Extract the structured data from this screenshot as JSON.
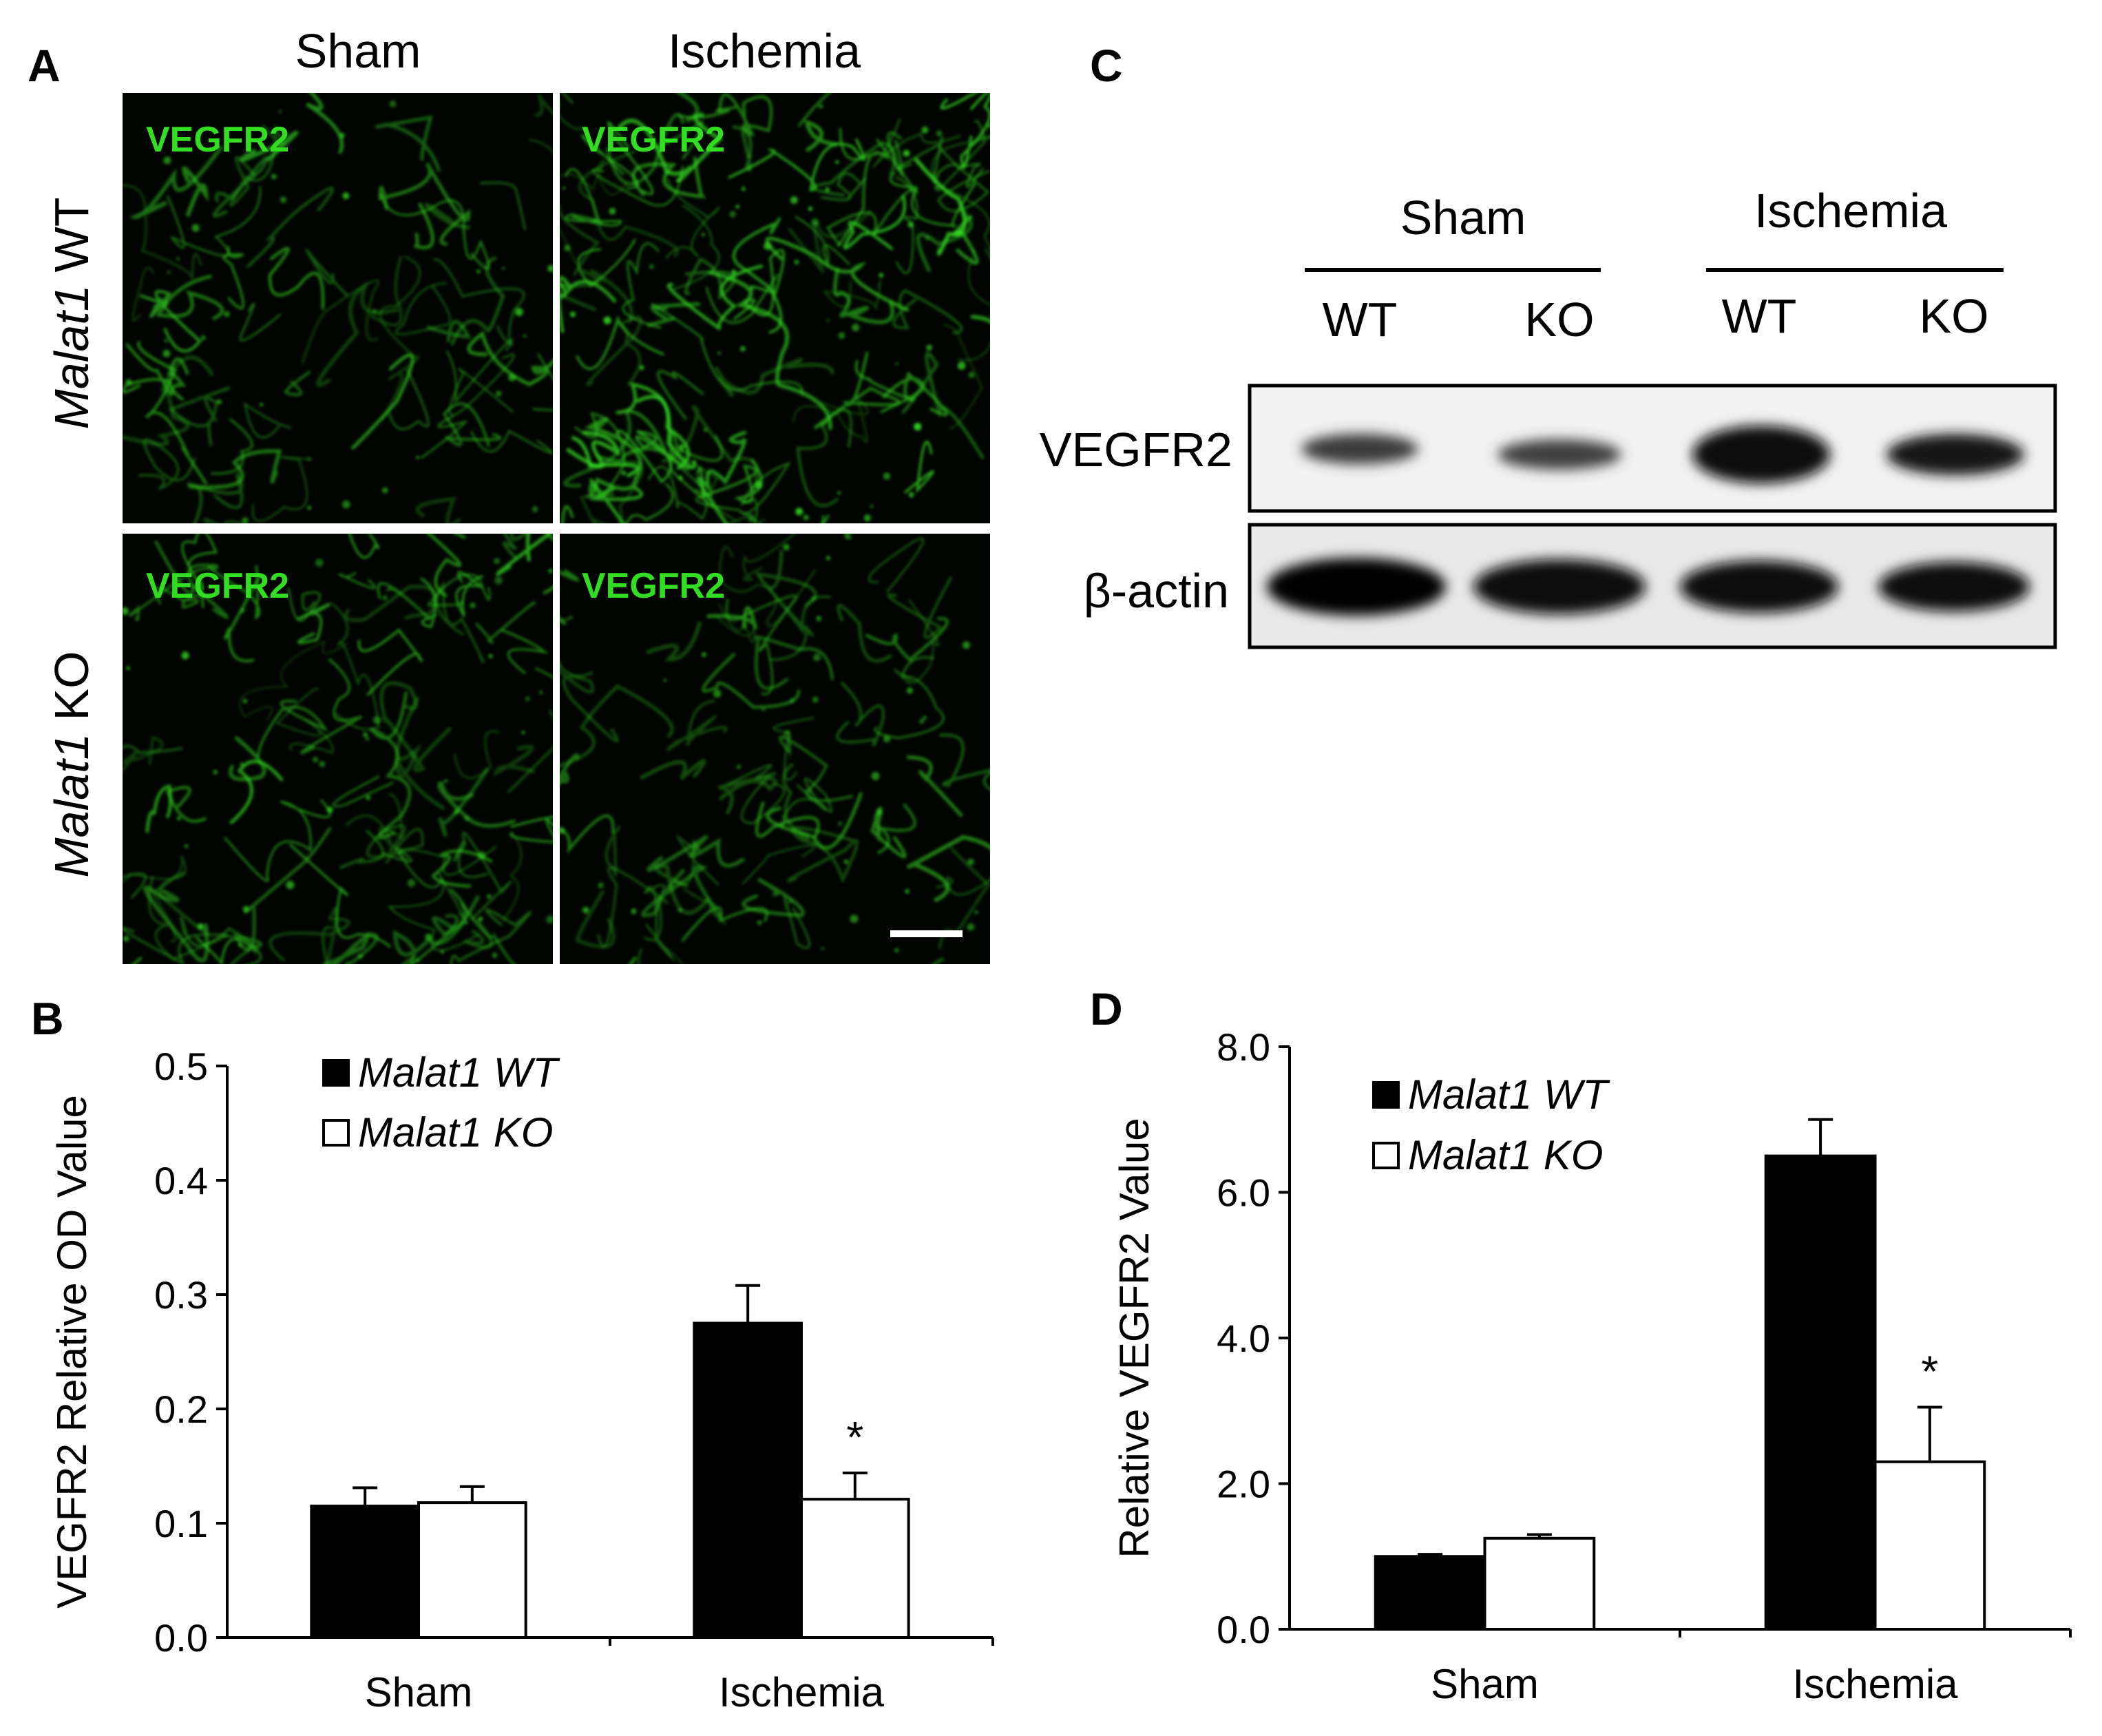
{
  "panels": {
    "a": {
      "letter": "A",
      "columns": [
        "Sham",
        "Ischemia"
      ],
      "rows": [
        {
          "gene": "Malat1",
          "genotype": "WT"
        },
        {
          "gene": "Malat1",
          "genotype": "KO"
        }
      ],
      "stain_label": "VEGFR2",
      "stain_color": "#33dd22",
      "has_scale_bar": true
    },
    "b": {
      "letter": "B"
    },
    "c": {
      "letter": "C",
      "groups": [
        "Sham",
        "Ischemia"
      ],
      "lanes": [
        "WT",
        "KO",
        "WT",
        "KO"
      ],
      "bands": [
        "VEGFR2",
        "β-actin"
      ]
    },
    "d": {
      "letter": "D"
    }
  },
  "chart_data": [
    {
      "panel": "B",
      "type": "bar",
      "categories": [
        "Sham",
        "Ischemia"
      ],
      "series": [
        {
          "name": "Malat1 WT",
          "values": [
            0.115,
            0.275
          ],
          "errors": [
            0.016,
            0.033
          ],
          "color": "#000000"
        },
        {
          "name": "Malat1 KO",
          "values": [
            0.118,
            0.121
          ],
          "errors": [
            0.014,
            0.023
          ],
          "color": "#ffffff"
        }
      ],
      "annotations": [
        {
          "category": "Ischemia",
          "series": "Malat1 KO",
          "text": "*"
        }
      ],
      "ylabel": "VEGFR2 Relative OD Value",
      "ylim": [
        0,
        0.5
      ],
      "yticks": [
        "0.0",
        "0.1",
        "0.2",
        "0.3",
        "0.4",
        "0.5"
      ],
      "legend": "top-left",
      "grid": false
    },
    {
      "panel": "D",
      "type": "bar",
      "categories": [
        "Sham",
        "Ischemia"
      ],
      "series": [
        {
          "name": "Malat1 WT",
          "values": [
            1.0,
            6.5
          ],
          "errors": [
            0.03,
            0.5
          ],
          "color": "#000000"
        },
        {
          "name": "Malat1 KO",
          "values": [
            1.25,
            2.3
          ],
          "errors": [
            0.05,
            0.75
          ],
          "color": "#ffffff"
        }
      ],
      "annotations": [
        {
          "category": "Ischemia",
          "series": "Malat1 KO",
          "text": "*"
        }
      ],
      "ylabel": "Relative VEGFR2 Value",
      "ylim": [
        0,
        8
      ],
      "yticks": [
        "0.0",
        "2.0",
        "4.0",
        "6.0",
        "8.0"
      ],
      "legend": "top-left",
      "grid": false
    }
  ]
}
